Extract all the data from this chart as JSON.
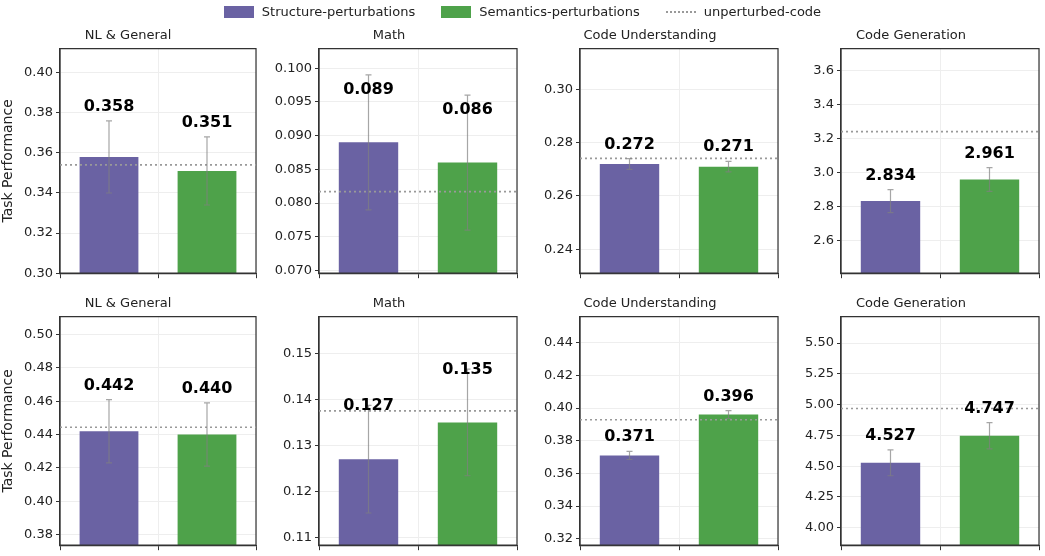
{
  "chart_data": [
    {
      "type": "bar",
      "title": "NL & General",
      "ylabel": "Task Performance",
      "categories": [
        null,
        null
      ],
      "legend": "top",
      "tick_labels": "y",
      "grid": true,
      "data_labels": true,
      "ylim": [
        0.3,
        0.412
      ],
      "yticks": [
        {
          "value": 0.3,
          "label": "0.30"
        },
        0.32,
        0.34,
        0.36,
        0.38,
        {
          "value": 0.4,
          "label": "0.40"
        }
      ],
      "series": [
        {
          "name": "Structure-perturbations",
          "color": "#6a62a3",
          "values": [
            0.358,
            null
          ],
          "errors": [
            0.018,
            null
          ]
        },
        {
          "name": "Semantics-perturbations",
          "color": "#4ea24a",
          "values": [
            null,
            0.351
          ],
          "errors": [
            null,
            0.017
          ]
        }
      ],
      "ref_lines": [
        {
          "axis": "y",
          "value": 0.354,
          "label": "unperturbed-code",
          "color": "#999999",
          "line_style": "dotted"
        }
      ]
    },
    {
      "type": "bar",
      "title": "Math",
      "categories": [
        null,
        null
      ],
      "tick_labels": "y",
      "grid": true,
      "ylim": [
        0.0696,
        0.1029
      ],
      "yticks": [
        {
          "value": 0.07,
          "label": "0.070"
        },
        0.075,
        {
          "value": 0.08,
          "label": "0.080"
        },
        0.085,
        {
          "value": 0.09,
          "label": "0.090"
        },
        0.095,
        {
          "value": 0.1,
          "label": "0.100"
        }
      ],
      "series": [
        {
          "color": "#6a62a3",
          "values": [
            0.089,
            null
          ],
          "errors": [
            0.01,
            null
          ],
          "value_labels": [
            "0.089",
            null
          ]
        },
        {
          "color": "#4ea24a",
          "values": [
            null,
            0.086
          ],
          "errors": [
            null,
            0.01
          ],
          "value_labels": [
            null,
            "0.086"
          ]
        }
      ],
      "ref_lines": [
        {
          "axis": "y",
          "value": 0.0817,
          "color": "#999999",
          "line_style": "dotted"
        }
      ]
    },
    {
      "type": "bar",
      "title": "Code Understanding",
      "categories": [
        null,
        null
      ],
      "tick_labels": "y",
      "grid": true,
      "data_labels": true,
      "ylim": [
        0.231,
        0.3153
      ],
      "yticks": [
        0.24,
        0.26,
        0.28,
        {
          "value": 0.3,
          "label": "0.30"
        }
      ],
      "series": [
        {
          "color": "#6a62a3",
          "values": [
            0.272,
            null
          ],
          "errors": [
            0.002,
            null
          ]
        },
        {
          "color": "#4ea24a",
          "values": [
            null,
            0.271
          ],
          "errors": [
            null,
            0.002
          ]
        }
      ],
      "ref_lines": [
        {
          "axis": "y",
          "value": 0.2741,
          "color": "#999999",
          "line_style": "dotted"
        }
      ]
    },
    {
      "type": "bar",
      "title": "Code Generation",
      "categories": [
        null,
        null
      ],
      "tick_labels": "y",
      "grid": true,
      "data_labels": true,
      "ylim": [
        2.411,
        3.729
      ],
      "yticks": [
        2.6,
        2.8,
        {
          "value": 3,
          "label": "3.0"
        },
        3.2,
        3.4,
        3.6
      ],
      "series": [
        {
          "color": "#6a62a3",
          "values": [
            2.834,
            null
          ],
          "errors": [
            0.068,
            null
          ]
        },
        {
          "color": "#4ea24a",
          "values": [
            null,
            2.961
          ],
          "errors": [
            null,
            0.07
          ]
        }
      ],
      "ref_lines": [
        {
          "axis": "y",
          "value": 3.242,
          "color": "#999999",
          "line_style": "dotted"
        }
      ]
    },
    {
      "type": "bar",
      "title": "NL & General",
      "ylabel": "Task Performance",
      "categories": [
        null,
        null
      ],
      "tick_labels": "y",
      "grid": true,
      "ylim": [
        0.3736,
        0.5108
      ],
      "yticks": [
        0.38,
        {
          "value": 0.4,
          "label": "0.40"
        },
        0.42,
        0.44,
        0.46,
        0.48,
        {
          "value": 0.5,
          "label": "0.50"
        }
      ],
      "series": [
        {
          "color": "#6a62a3",
          "values": [
            0.442,
            null
          ],
          "errors": [
            0.019,
            null
          ],
          "value_labels": [
            "0.442",
            null
          ]
        },
        {
          "color": "#4ea24a",
          "values": [
            null,
            0.44
          ],
          "errors": [
            null,
            0.019
          ],
          "value_labels": [
            null,
            "0.440"
          ]
        }
      ],
      "ref_lines": [
        {
          "axis": "y",
          "value": 0.4444,
          "color": "#999999",
          "line_style": "dotted"
        }
      ]
    },
    {
      "type": "bar",
      "title": "Math",
      "categories": [
        null,
        null
      ],
      "tick_labels": "y",
      "grid": true,
      "ylim": [
        0.1083,
        0.158
      ],
      "yticks": [
        0.11,
        0.12,
        0.13,
        0.14,
        0.15
      ],
      "series": [
        {
          "color": "#6a62a3",
          "values": [
            0.127,
            null
          ],
          "errors": [
            0.0117,
            null
          ],
          "value_labels": [
            "0.127",
            null
          ]
        },
        {
          "color": "#4ea24a",
          "values": [
            null,
            0.135
          ],
          "errors": [
            null,
            0.0116
          ],
          "value_labels": [
            null,
            "0.135"
          ]
        }
      ],
      "ref_lines": [
        {
          "axis": "y",
          "value": 0.1375,
          "color": "#999999",
          "line_style": "dotted"
        }
      ]
    },
    {
      "type": "bar",
      "title": "Code Understanding",
      "categories": [
        null,
        null
      ],
      "tick_labels": "y",
      "grid": true,
      "data_labels": true,
      "ylim": [
        0.316,
        0.456
      ],
      "yticks": [
        0.32,
        0.34,
        0.36,
        0.38,
        {
          "value": 0.4,
          "label": "0.40"
        },
        0.42,
        0.44
      ],
      "series": [
        {
          "color": "#6a62a3",
          "values": [
            0.371,
            null
          ],
          "errors": [
            0.0025,
            null
          ]
        },
        {
          "color": "#4ea24a",
          "values": [
            null,
            0.396
          ],
          "errors": [
            null,
            0.0024
          ]
        }
      ],
      "ref_lines": [
        {
          "axis": "y",
          "value": 0.3928,
          "color": "#999999",
          "line_style": "dotted"
        }
      ]
    },
    {
      "type": "bar",
      "title": "Code Generation",
      "categories": [
        null,
        null
      ],
      "tick_labels": "y",
      "grid": true,
      "data_labels": true,
      "ylim": [
        3.858,
        5.715
      ],
      "yticks": [
        {
          "value": 4,
          "label": "4.00"
        },
        4.25,
        {
          "value": 4.5,
          "label": "4.50"
        },
        4.75,
        {
          "value": 5,
          "label": "5.00"
        },
        5.25,
        {
          "value": 5.5,
          "label": "5.50"
        }
      ],
      "series": [
        {
          "color": "#6a62a3",
          "values": [
            4.527,
            null
          ],
          "errors": [
            0.105,
            null
          ]
        },
        {
          "color": "#4ea24a",
          "values": [
            null,
            4.747
          ],
          "errors": [
            null,
            0.106
          ]
        }
      ],
      "ref_lines": [
        {
          "axis": "y",
          "value": 4.969,
          "color": "#999999",
          "line_style": "dotted"
        }
      ]
    }
  ]
}
